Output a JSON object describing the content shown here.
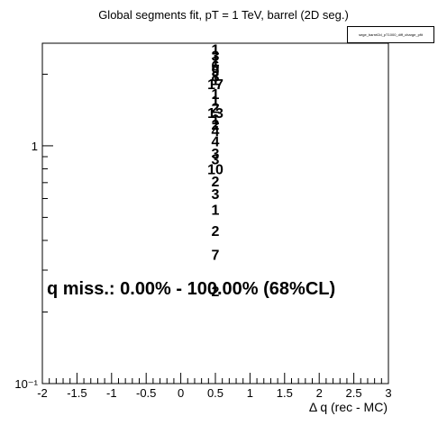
{
  "title": "Global segments fit, pT = 1 TeV, barrel (2D seg.)",
  "stat_box_title": "sege_barrel2d_pT1000_diff_charge_pfit",
  "annotation": "q miss.: 0.00% - 100.00% (68%CL)",
  "chart_data": {
    "type": "histogram",
    "title": "Global segments fit, pT = 1 TeV, barrel (2D seg.)",
    "xlabel": "Δ q (rec - MC)",
    "ylabel": "",
    "xlim": [
      -2,
      3
    ],
    "ylim": [
      0.1,
      2.7
    ],
    "y_scale": "log",
    "grid": false,
    "x_ticks": [
      "-2",
      "-1.5",
      "-1",
      "-0.5",
      "0",
      "0.5",
      "1",
      "1.5",
      "2",
      "2.5",
      "3"
    ],
    "y_ticks": [
      {
        "value": 1,
        "label": "1"
      },
      {
        "value": 0.1,
        "label": "10⁻¹"
      }
    ],
    "bin_labels": [
      {
        "x": 0.5,
        "y": 2.55,
        "label": "1"
      },
      {
        "x": 0.5,
        "y": 2.4,
        "label": "3"
      },
      {
        "x": 0.5,
        "y": 2.28,
        "label": "1"
      },
      {
        "x": 0.5,
        "y": 2.18,
        "label": "6"
      },
      {
        "x": 0.5,
        "y": 2.07,
        "label": "9"
      },
      {
        "x": 0.5,
        "y": 1.96,
        "label": "8"
      },
      {
        "x": 0.5,
        "y": 1.9,
        "label": "1"
      },
      {
        "x": 0.5,
        "y": 1.82,
        "label": "17"
      },
      {
        "x": 0.5,
        "y": 1.66,
        "label": "1"
      },
      {
        "x": 0.5,
        "y": 1.55,
        "label": "1"
      },
      {
        "x": 0.5,
        "y": 1.45,
        "label": "2"
      },
      {
        "x": 0.5,
        "y": 1.38,
        "label": "13"
      },
      {
        "x": 0.5,
        "y": 1.3,
        "label": "1"
      },
      {
        "x": 0.5,
        "y": 1.23,
        "label": "2"
      },
      {
        "x": 0.5,
        "y": 1.16,
        "label": "4"
      },
      {
        "x": 0.5,
        "y": 1.05,
        "label": "4"
      },
      {
        "x": 0.5,
        "y": 0.93,
        "label": "3"
      },
      {
        "x": 0.5,
        "y": 0.88,
        "label": "3"
      },
      {
        "x": 0.5,
        "y": 0.8,
        "label": "10"
      },
      {
        "x": 0.5,
        "y": 0.71,
        "label": "2"
      },
      {
        "x": 0.5,
        "y": 0.63,
        "label": "3"
      },
      {
        "x": 0.5,
        "y": 0.54,
        "label": "1"
      },
      {
        "x": 0.5,
        "y": 0.44,
        "label": "2"
      },
      {
        "x": 0.5,
        "y": 0.35,
        "label": "7"
      },
      {
        "x": 0.5,
        "y": 0.245,
        "label": "2"
      }
    ]
  }
}
